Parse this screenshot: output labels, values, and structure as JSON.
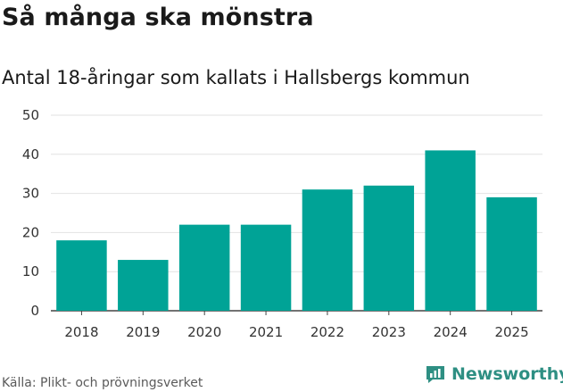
{
  "chart_data": {
    "type": "bar",
    "title": "Så många ska mönstra",
    "subtitle": "Antal 18-åringar som kallats i Hallsbergs kommun",
    "categories": [
      "2018",
      "2019",
      "2020",
      "2021",
      "2022",
      "2023",
      "2024",
      "2025"
    ],
    "values": [
      18,
      13,
      22,
      22,
      31,
      32,
      41,
      29
    ],
    "ylim": [
      0,
      50
    ],
    "yticks": [
      0,
      10,
      20,
      30,
      40,
      50
    ],
    "xlabel": "",
    "ylabel": "",
    "grid": true,
    "bar_color": "#00a396",
    "grid_color": "#e2e2e2"
  },
  "footer": {
    "source": "Källa: Plikt- och prövningsverket",
    "brand": "Newsworthy",
    "brand_icon": "bar-chart-icon",
    "brand_color": "#2e8f83"
  }
}
